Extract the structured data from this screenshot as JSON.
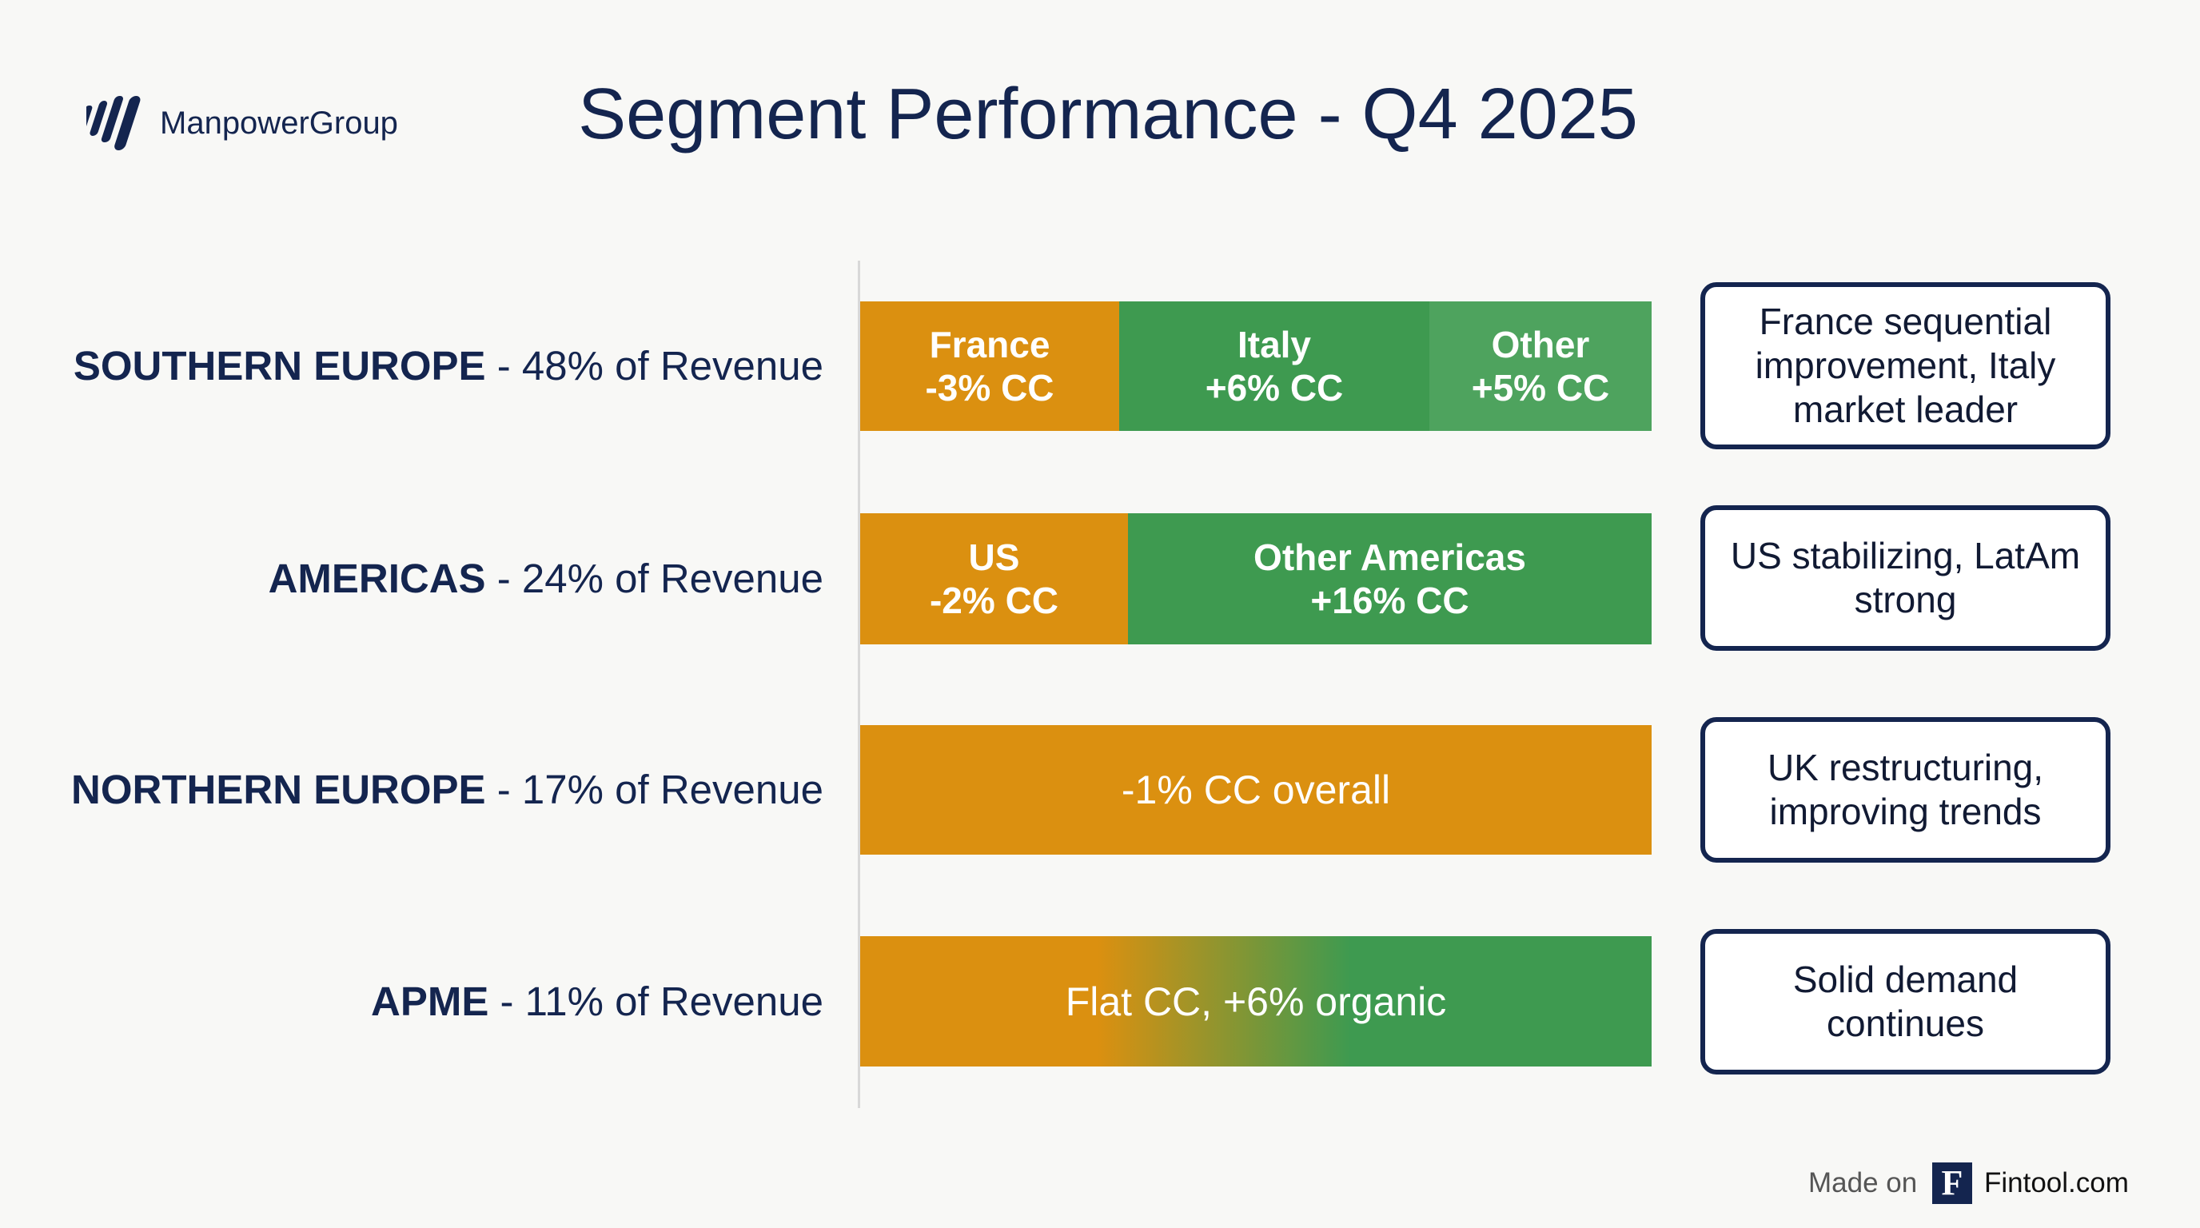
{
  "header": {
    "logo_text": "ManpowerGroup",
    "title": "Segment Performance - Q4 2025"
  },
  "rows": [
    {
      "segment": "SOUTHERN EUROPE",
      "share": "- 48% of Revenue",
      "blocks": [
        {
          "label": "France",
          "value": "-3% CC"
        },
        {
          "label": "Italy",
          "value": "+6% CC"
        },
        {
          "label": "Other",
          "value": "+5% CC"
        }
      ],
      "note": "France sequential improvement, Italy market leader"
    },
    {
      "segment": "AMERICAS",
      "share": "- 24% of Revenue",
      "blocks": [
        {
          "label": "US",
          "value": "-2% CC"
        },
        {
          "label": "Other Americas",
          "value": "+16% CC"
        }
      ],
      "note": "US stabilizing, LatAm strong"
    },
    {
      "segment": "NORTHERN EUROPE",
      "share": "- 17% of Revenue",
      "blocks": [
        {
          "value": "-1% CC overall"
        }
      ],
      "note": "UK restructuring, improving trends"
    },
    {
      "segment": "APME",
      "share": "- 11% of Revenue",
      "blocks": [
        {
          "value": "Flat CC, +6% organic"
        }
      ],
      "note": "Solid demand continues"
    }
  ],
  "footer": {
    "made_on": "Made on",
    "logo_letter": "F",
    "brand": "Fintool.com"
  }
}
